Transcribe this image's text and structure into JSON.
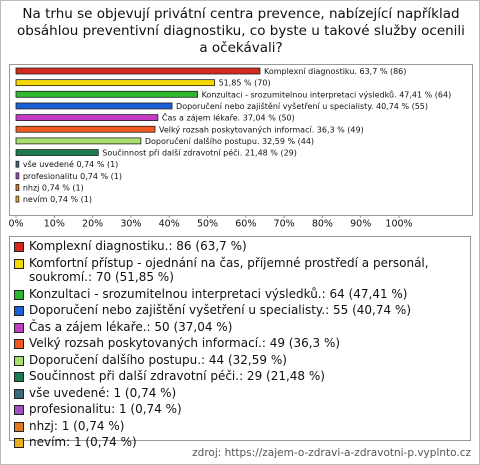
{
  "chart_data": {
    "type": "hbar",
    "title": "Na trhu se objevují privátní centra prevence, nabízející například obsáhlou preventivní diagnostiku, co byste u takové služby ocenili a očekávali?",
    "categories": [
      "Komplexní diagnostiku.: 86 (63,7 %)",
      "Komfortní přístup - ojednání na čas, příjemné prostředí a personál, soukromí.: 70 (51,85 %)",
      "Konzultaci - srozumitelnou interpretaci výsledků.: 64 (47,41 %)",
      "Doporučení nebo zajištění vyšetření u specialisty.: 55 (40,74 %)",
      "Čas a zájem lékaře.: 50 (37,04 %)",
      "Velký rozsah poskytovaných informací.: 49 (36,3 %)",
      "Doporučení dalšího postupu.: 44 (32,59 %)",
      "Součinnost při další zdravotní péči.: 29 (21,48 %)",
      "vše uvedené: 1 (0,74 %)",
      "profesionalitu: 1 (0,74 %)",
      "nhzj: 1 (0,74 %)",
      "nevím: 1 (0,74 %)"
    ],
    "values": [
      63.7,
      51.85,
      47.41,
      40.74,
      37.04,
      36.3,
      32.59,
      21.48,
      0.74,
      0.74,
      0.74,
      0.74
    ],
    "value_labels": [
      "Komplexní diagnostiku. 63,7 % (86)",
      "51,85 % (70)",
      "Konzultaci - srozumitelnou interpretaci výsledků. 47,41 % (64)",
      "Doporučení nebo zajištění vyšetření u specialisty. 40,74 % (55)",
      "Čas a zájem lékaře. 37,04 % (50)",
      "Velký rozsah poskytovaných informací. 36,3 % (49)",
      "Doporučení dalšího postupu. 32,59 % (44)",
      "Součinnost při další zdravotní péči. 21,48 % (29)",
      "vše uvedené 0,74 % (1)",
      "profesionalitu 0,74 % (1)",
      "nhzj 0,74 % (1)",
      "nevím 0,74 % (1)"
    ],
    "colors": [
      "#d42a1e",
      "#f5d800",
      "#2eb82e",
      "#1a5fd6",
      "#c43cc4",
      "#f05a1e",
      "#a8e070",
      "#1e7a50",
      "#3a6a7a",
      "#a050c0",
      "#e07a20",
      "#e8b020"
    ],
    "xlim": [
      0,
      100
    ],
    "xticks": [
      {
        "value": 0,
        "label": "0%"
      },
      {
        "value": 10,
        "label": "10%"
      },
      {
        "value": 20,
        "label": "20%"
      },
      {
        "value": 30,
        "label": "30%"
      },
      {
        "value": 40,
        "label": "40%"
      },
      {
        "value": 50,
        "label": "50%"
      },
      {
        "value": 60,
        "label": "60%"
      },
      {
        "value": 70,
        "label": "70%"
      },
      {
        "value": 80,
        "label": "80%"
      },
      {
        "value": 90,
        "label": "90%"
      },
      {
        "value": 100,
        "label": "100%"
      }
    ],
    "source": "zdroj: https://zajem-o-zdravi-a-zdravotni-p.vyplnto.cz"
  }
}
